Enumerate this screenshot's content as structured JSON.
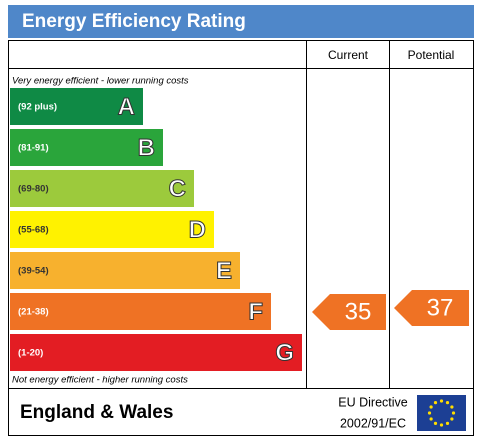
{
  "header": {
    "title": "Energy Efficiency Rating"
  },
  "columns": {
    "current": "Current",
    "potential": "Potential"
  },
  "top_note": "Very energy efficient - lower running costs",
  "bands": [
    {
      "range": "(92 plus)",
      "letter": "A",
      "color": "#0f8a45"
    },
    {
      "range": "(81-91)",
      "letter": "B",
      "color": "#2aa53b"
    },
    {
      "range": "(69-80)",
      "letter": "C",
      "color": "#9cca3c"
    },
    {
      "range": "(55-68)",
      "letter": "D",
      "color": "#fff200"
    },
    {
      "range": "(39-54)",
      "letter": "E",
      "color": "#f7b12e"
    },
    {
      "range": "(21-38)",
      "letter": "F",
      "color": "#ef7224"
    },
    {
      "range": "(1-20)",
      "letter": "G",
      "color": "#e31d23"
    }
  ],
  "bottom_note": "Not energy efficient - higher running costs",
  "current_rating": "35",
  "potential_rating": "37",
  "footer": {
    "region": "England & Wales",
    "directive_line1": "EU Directive",
    "directive_line2": "2002/91/EC"
  }
}
